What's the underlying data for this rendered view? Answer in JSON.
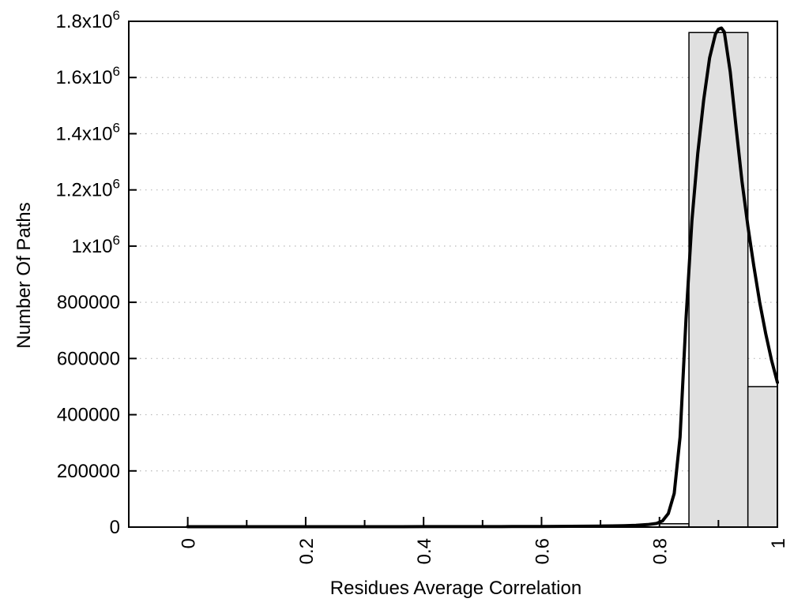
{
  "chart_data": {
    "type": "bar",
    "subtype": "histogram_with_fitted_curve",
    "title": "",
    "xlabel": "Residues Average Correlation",
    "ylabel": "Number Of Paths",
    "xlim": [
      -0.1,
      1.0
    ],
    "ylim": [
      0,
      1800000
    ],
    "x_major_ticks": {
      "values": [
        0,
        0.2,
        0.4,
        0.6,
        0.8,
        1
      ],
      "labels": [
        "0",
        "0.2",
        "0.4",
        "0.6",
        "0.8",
        "1"
      ],
      "label_rotation_deg": -90
    },
    "x_minor_ticks": [
      0.1,
      0.3,
      0.5,
      0.7,
      0.9
    ],
    "y_ticks": {
      "values": [
        0,
        200000,
        400000,
        600000,
        800000,
        1000000,
        1200000,
        1400000,
        1600000,
        1800000
      ],
      "labels": [
        "0",
        "200000",
        "400000",
        "600000",
        "800000",
        "1x10^6",
        "1.2x10^6",
        "1.4x10^6",
        "1.6x10^6",
        "1.8x10^6"
      ]
    },
    "grid": {
      "horizontal": true,
      "vertical": false,
      "style": "dotted"
    },
    "legend": "none",
    "bars": [
      {
        "x_from": 0.8,
        "x_to": 0.85,
        "count": 12000
      },
      {
        "x_from": 0.85,
        "x_to": 0.95,
        "count": 1760000
      },
      {
        "x_from": 0.95,
        "x_to": 1.0,
        "count": 500000
      }
    ],
    "curve": {
      "name": "fit-curve",
      "x": [
        0,
        0.05,
        0.1,
        0.15,
        0.2,
        0.25,
        0.3,
        0.35,
        0.4,
        0.45,
        0.5,
        0.55,
        0.6,
        0.65,
        0.7,
        0.72,
        0.74,
        0.76,
        0.78,
        0.795,
        0.805,
        0.815,
        0.825,
        0.835,
        0.845,
        0.855,
        0.865,
        0.875,
        0.885,
        0.895,
        0.9,
        0.905,
        0.91,
        0.92,
        0.93,
        0.94,
        0.95,
        0.96,
        0.97,
        0.98,
        0.99,
        1.0
      ],
      "y": [
        1500,
        1500,
        1500,
        1500,
        1500,
        1500,
        1500,
        1500,
        1600,
        1700,
        1800,
        2000,
        2300,
        2800,
        3600,
        4200,
        5000,
        6500,
        9000,
        13000,
        22000,
        48000,
        120000,
        320000,
        740000,
        1090000,
        1330000,
        1520000,
        1670000,
        1755000,
        1772000,
        1776000,
        1762000,
        1620000,
        1420000,
        1230000,
        1070000,
        930000,
        800000,
        690000,
        595000,
        515000
      ]
    },
    "colors": {
      "background": "#ffffff",
      "axis": "#000000",
      "bar_fill": "#e0e0e0",
      "bar_border": "#000000",
      "curve": "#000000",
      "grid": "#b8b8b8",
      "text": "#000000"
    }
  }
}
